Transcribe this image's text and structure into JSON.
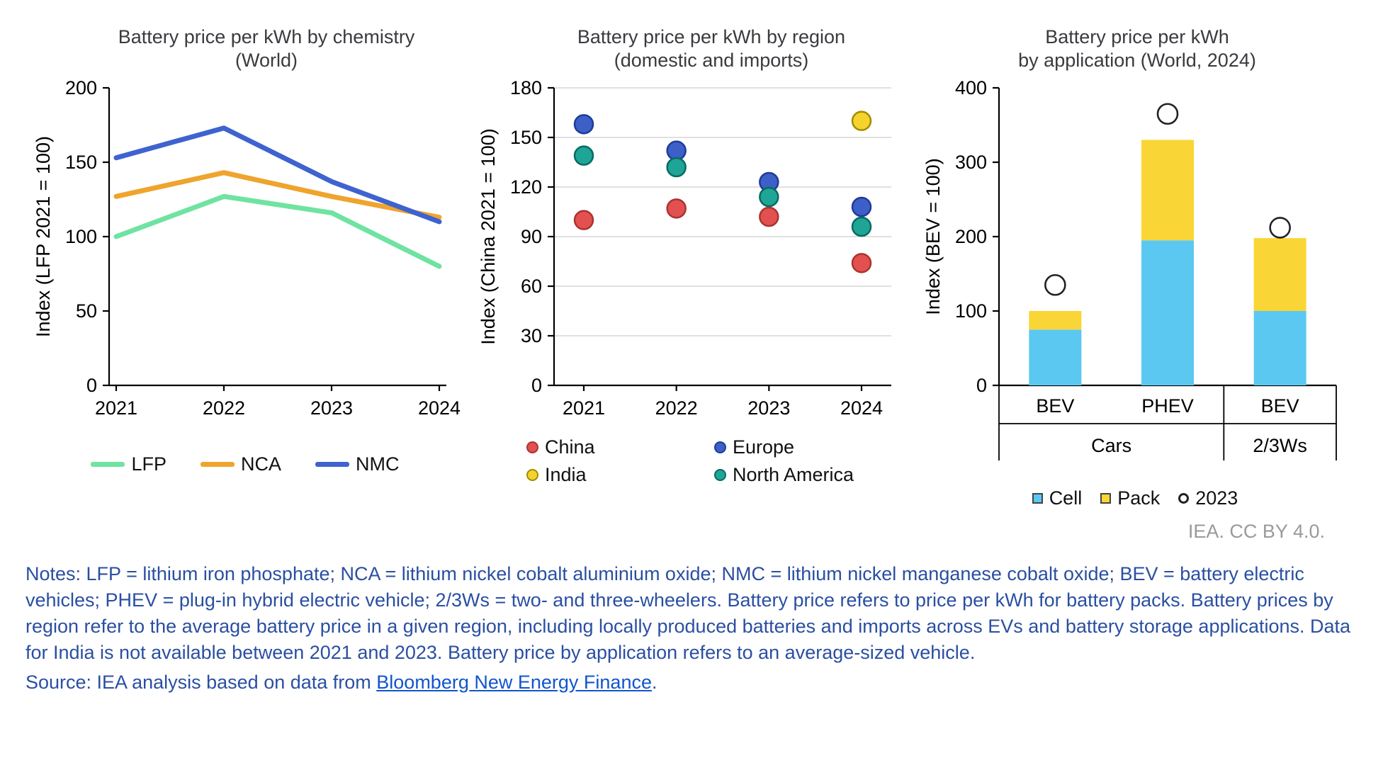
{
  "credit": "IEA. CC BY 4.0.",
  "notes_text": "Notes: LFP = lithium iron phosphate; NCA = lithium nickel cobalt aluminium oxide; NMC = lithium nickel manganese cobalt oxide; BEV = battery electric vehicles; PHEV = plug-in hybrid electric vehicle; 2/3Ws = two- and three-wheelers. Battery price refers to price per kWh for battery packs. Battery prices by region refer to the average battery price in a given region, including locally produced batteries and imports across EVs and battery storage applications. Data for India is not available between 2021 and 2023. Battery price by application refers to an average-sized vehicle.",
  "source": {
    "prefix": "Source: IEA analysis based on data from ",
    "link_text": "Bloomberg New Energy Finance",
    "suffix": "."
  },
  "colors": {
    "notes_text": "#2a4fa2",
    "link": "#1155CC",
    "credit": "#9a9a9a",
    "title": "#3a3a3f",
    "axis": "#000000",
    "gridline": "#d6d6d6"
  },
  "chart_data": [
    {
      "type": "line",
      "title": "Battery price per kWh by chemistry",
      "subtitle": "(World)",
      "ylabel": "Index (LFP 2021 = 100)",
      "x": [
        "2021",
        "2022",
        "2023",
        "2024"
      ],
      "ylim": [
        0,
        200
      ],
      "yticks": [
        0,
        50,
        100,
        150,
        200
      ],
      "grid": false,
      "legend_position": "bottom",
      "series": [
        {
          "name": "LFP",
          "color": "#6FE3A1",
          "values": [
            100,
            127,
            116,
            80
          ]
        },
        {
          "name": "NCA",
          "color": "#EFA42D",
          "values": [
            127,
            143,
            127,
            113
          ]
        },
        {
          "name": "NMC",
          "color": "#3E63D0",
          "values": [
            153,
            173,
            137,
            110
          ]
        }
      ]
    },
    {
      "type": "scatter",
      "title": "Battery price per kWh by region",
      "subtitle": "(domestic and imports)",
      "ylabel": "Index (China 2021 = 100)",
      "x": [
        "2021",
        "2022",
        "2023",
        "2024"
      ],
      "ylim": [
        0,
        180
      ],
      "yticks": [
        0,
        30,
        60,
        90,
        120,
        150,
        180
      ],
      "grid": true,
      "legend_position": "bottom",
      "series": [
        {
          "name": "China",
          "color": "#E2514F",
          "stroke": "#A93430",
          "values": [
            100,
            107,
            102,
            74
          ]
        },
        {
          "name": "Europe",
          "color": "#3D5FC8",
          "stroke": "#1F3C96",
          "values": [
            158,
            142,
            123,
            108
          ]
        },
        {
          "name": "India",
          "color": "#F5D32C",
          "stroke": "#A08C00",
          "values": [
            null,
            null,
            null,
            160
          ]
        },
        {
          "name": "North America",
          "color": "#1FA596",
          "stroke": "#076B62",
          "values": [
            139,
            132,
            114,
            96
          ]
        }
      ]
    },
    {
      "type": "bar",
      "title": "Battery price per kWh",
      "subtitle": "by application (World, 2024)",
      "ylabel": "Index (BEV = 100)",
      "categories": [
        "BEV",
        "PHEV",
        "BEV"
      ],
      "groups": [
        {
          "label": "Cars",
          "span": 2
        },
        {
          "label": "2/3Ws",
          "span": 1
        }
      ],
      "ylim": [
        0,
        400
      ],
      "yticks": [
        0,
        100,
        200,
        300,
        400
      ],
      "grid": false,
      "legend_position": "bottom",
      "series": [
        {
          "name": "Cell",
          "color": "#5BC8F2",
          "values": [
            75,
            195,
            100
          ]
        },
        {
          "name": "Pack",
          "color": "#F9D635",
          "values": [
            25,
            135,
            98
          ]
        }
      ],
      "markers": {
        "name": "2023",
        "fill": "#ffffff",
        "stroke": "#222222",
        "values": [
          135,
          365,
          212
        ]
      }
    }
  ]
}
